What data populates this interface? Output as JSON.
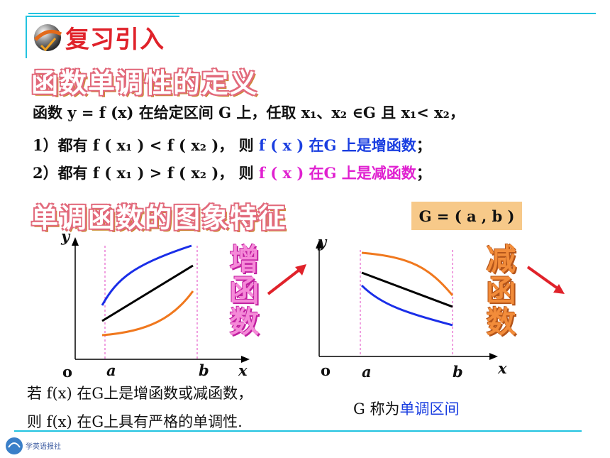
{
  "header": {
    "title": "复习引入"
  },
  "section1": {
    "heading": "函数单调性的定义",
    "line1": "函数 y = f (x) 在给定区间 G 上，任取 x₁、x₂ ∈G 且 x₁< x₂，",
    "line2_prefix": "1）都有 f ( x₁ ) < f ( x₂ )，    则",
    "line2_hl": "f ( x ) 在G 上是增函数",
    "line2_suffix": "；",
    "line3_prefix": "2）都有 f ( x₁ ) > f ( x₂ )，    则",
    "line3_hl": "f ( x ) 在G 上是减函数",
    "line3_suffix": "；"
  },
  "section2": {
    "heading": "单调函数的图象特征",
    "g_label": "G = ( a , b )",
    "inc_label": "增函数",
    "dec_label": "减函数"
  },
  "graph_left": {
    "y": "y",
    "o": "o",
    "a": "a",
    "b": "b",
    "x": "x"
  },
  "graph_right": {
    "y": "y",
    "o": "o",
    "a": "a",
    "b": "b",
    "x": "x"
  },
  "footer": {
    "note1": "若 f(x) 在G上是增函数或减函数，",
    "note2": "则 f(x) 在G上具有严格的单调性.",
    "g_called_prefix": "G 称为",
    "g_called_hl": "单调区间",
    "publisher": "学英语报社"
  },
  "colors": {
    "accent_line": "#22c3e0",
    "title": "#e0222a",
    "blue": "#1a3ee0",
    "magenta": "#e020d0",
    "orange": "#f0781e",
    "pink": "#f58ad8"
  }
}
